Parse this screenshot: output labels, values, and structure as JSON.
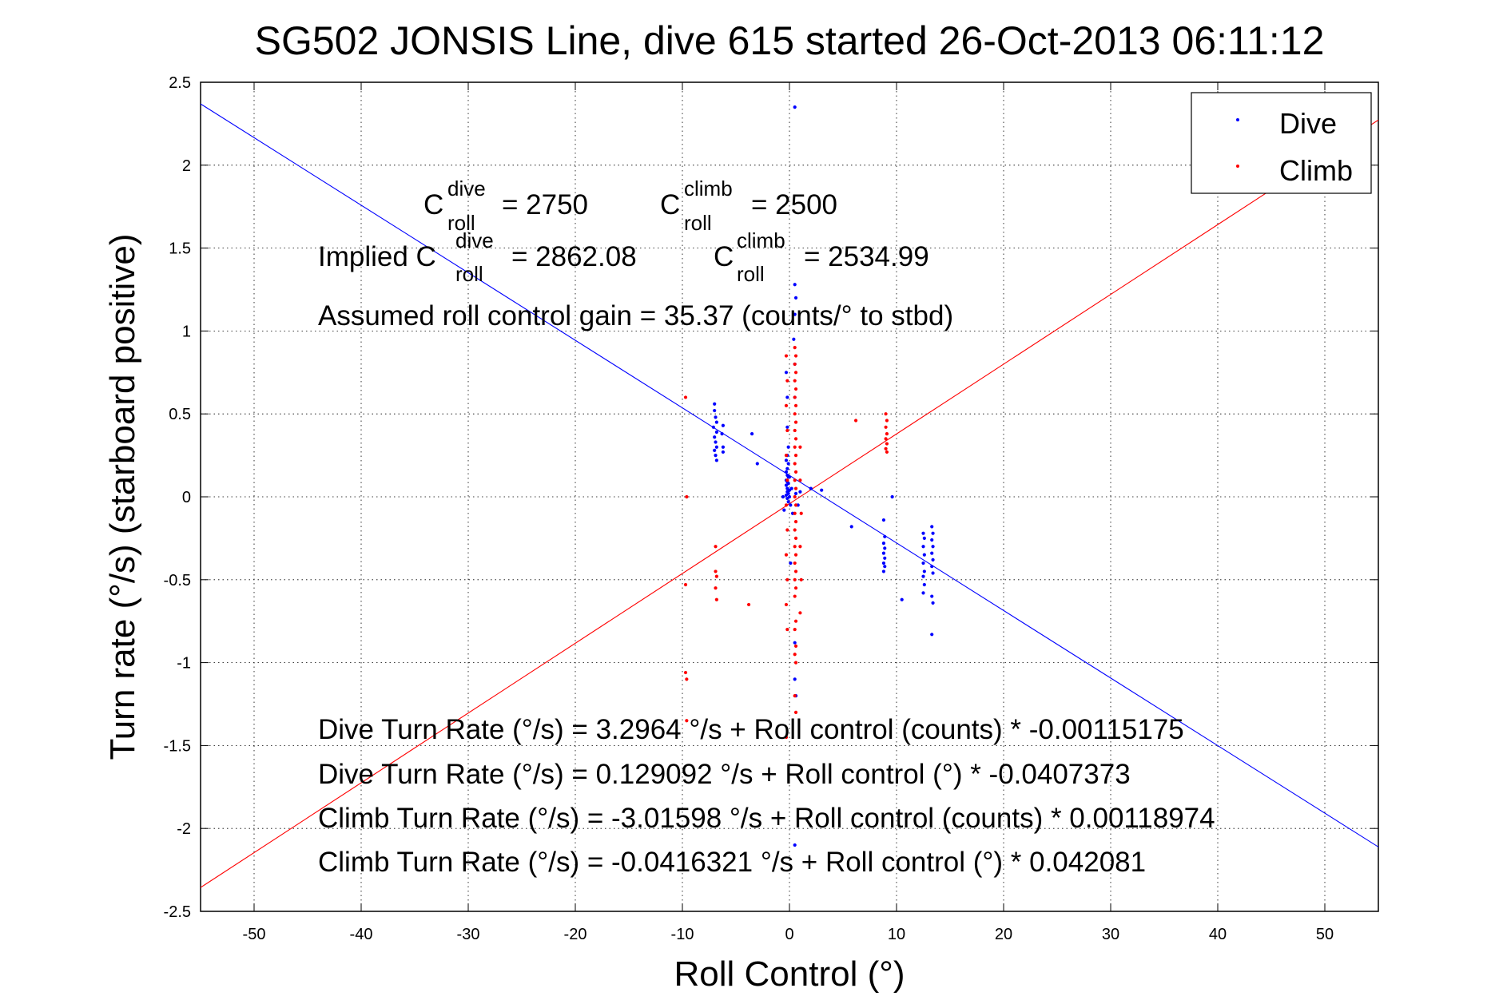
{
  "chart_data": {
    "type": "scatter",
    "title": "SG502 JONSIS Line, dive 615 started 26-Oct-2013 06:11:12",
    "xlabel": "Roll Control (°)",
    "ylabel": "Turn rate (°/s)  (starboard positive)",
    "xlim": [
      -55,
      55
    ],
    "ylim": [
      -2.5,
      2.5
    ],
    "xticks": [
      -50,
      -40,
      -30,
      -20,
      -10,
      0,
      10,
      20,
      30,
      40,
      50
    ],
    "yticks": [
      -2.5,
      -2,
      -1.5,
      -1,
      -0.5,
      0,
      0.5,
      1,
      1.5,
      2,
      2.5
    ],
    "grid": true,
    "legend_position": "top-right",
    "legend": [
      {
        "label": "Dive",
        "color": "#0000ff"
      },
      {
        "label": "Climb",
        "color": "#ff0000"
      }
    ],
    "series": [
      {
        "name": "Dive",
        "color": "#0000ff",
        "points": [
          [
            0.5,
            2.35
          ],
          [
            0.5,
            1.28
          ],
          [
            0.6,
            1.2
          ],
          [
            0.5,
            1.1
          ],
          [
            0.4,
            0.95
          ],
          [
            0.5,
            0.8
          ],
          [
            0.5,
            0.6
          ],
          [
            -0.3,
            0.75
          ],
          [
            -0.2,
            0.6
          ],
          [
            -0.2,
            0.42
          ],
          [
            -0.1,
            0.3
          ],
          [
            -0.2,
            0.25
          ],
          [
            -0.3,
            0.22
          ],
          [
            -0.1,
            0.2
          ],
          [
            -0.2,
            0.17
          ],
          [
            -0.3,
            0.15
          ],
          [
            -0.2,
            0.13
          ],
          [
            -0.1,
            0.12
          ],
          [
            -0.3,
            0.1
          ],
          [
            -0.2,
            0.09
          ],
          [
            -0.1,
            0.08
          ],
          [
            -0.3,
            0.07
          ],
          [
            -0.2,
            0.05
          ],
          [
            0.0,
            0.04
          ],
          [
            -0.2,
            0.03
          ],
          [
            -0.1,
            0.02
          ],
          [
            -0.3,
            0.01
          ],
          [
            0.0,
            0.0
          ],
          [
            -0.2,
            -0.01
          ],
          [
            -0.1,
            -0.03
          ],
          [
            0.1,
            -0.05
          ],
          [
            -0.5,
            -0.08
          ],
          [
            0.3,
            -0.1
          ],
          [
            0.0,
            0.12
          ],
          [
            0.2,
            0.05
          ],
          [
            0.6,
            0.02
          ],
          [
            0.8,
            -0.05
          ],
          [
            1.0,
            0.03
          ],
          [
            -0.6,
            0.0
          ],
          [
            0.1,
            -0.4
          ],
          [
            0.5,
            -0.88
          ],
          [
            0.5,
            -1.1
          ],
          [
            0.6,
            -1.2
          ],
          [
            0.5,
            -2.1
          ],
          [
            -7.0,
            0.56
          ],
          [
            -7.0,
            0.52
          ],
          [
            -6.9,
            0.48
          ],
          [
            -6.8,
            0.45
          ],
          [
            -7.1,
            0.42
          ],
          [
            -6.8,
            0.39
          ],
          [
            -7.0,
            0.36
          ],
          [
            -6.9,
            0.33
          ],
          [
            -6.8,
            0.3
          ],
          [
            -7.0,
            0.28
          ],
          [
            -6.9,
            0.25
          ],
          [
            -6.8,
            0.22
          ],
          [
            -6.2,
            0.43
          ],
          [
            -6.3,
            0.38
          ],
          [
            -6.2,
            0.3
          ],
          [
            -6.2,
            0.27
          ],
          [
            -3.5,
            0.38
          ],
          [
            -3.0,
            0.2
          ],
          [
            2.0,
            0.05
          ],
          [
            3.0,
            0.04
          ],
          [
            5.8,
            -0.18
          ],
          [
            8.8,
            -0.14
          ],
          [
            8.9,
            -0.24
          ],
          [
            8.8,
            -0.28
          ],
          [
            8.9,
            -0.31
          ],
          [
            8.8,
            -0.34
          ],
          [
            8.9,
            -0.37
          ],
          [
            8.8,
            -0.4
          ],
          [
            8.9,
            -0.42
          ],
          [
            8.8,
            -0.45
          ],
          [
            9.6,
            0.0
          ],
          [
            10.5,
            -0.62
          ],
          [
            12.5,
            -0.22
          ],
          [
            12.6,
            -0.25
          ],
          [
            12.5,
            -0.3
          ],
          [
            12.6,
            -0.35
          ],
          [
            12.5,
            -0.4
          ],
          [
            12.6,
            -0.45
          ],
          [
            12.5,
            -0.48
          ],
          [
            12.6,
            -0.53
          ],
          [
            12.5,
            -0.58
          ],
          [
            13.3,
            -0.18
          ],
          [
            13.4,
            -0.22
          ],
          [
            13.3,
            -0.26
          ],
          [
            13.4,
            -0.3
          ],
          [
            13.3,
            -0.34
          ],
          [
            13.4,
            -0.38
          ],
          [
            13.3,
            -0.42
          ],
          [
            13.4,
            -0.46
          ],
          [
            13.3,
            -0.6
          ],
          [
            13.4,
            -0.64
          ],
          [
            13.3,
            -0.83
          ]
        ]
      },
      {
        "name": "Climb",
        "color": "#ff0000",
        "points": [
          [
            0.5,
            0.9
          ],
          [
            0.6,
            0.85
          ],
          [
            0.5,
            0.8
          ],
          [
            0.6,
            0.75
          ],
          [
            0.5,
            0.7
          ],
          [
            0.6,
            0.65
          ],
          [
            0.5,
            0.6
          ],
          [
            0.6,
            0.55
          ],
          [
            0.5,
            0.5
          ],
          [
            0.6,
            0.45
          ],
          [
            0.5,
            0.4
          ],
          [
            0.6,
            0.35
          ],
          [
            0.5,
            0.3
          ],
          [
            0.6,
            0.25
          ],
          [
            0.5,
            0.2
          ],
          [
            0.6,
            0.15
          ],
          [
            0.5,
            0.1
          ],
          [
            0.6,
            0.05
          ],
          [
            0.5,
            0.0
          ],
          [
            0.6,
            -0.05
          ],
          [
            0.5,
            -0.1
          ],
          [
            0.6,
            -0.15
          ],
          [
            0.5,
            -0.2
          ],
          [
            0.6,
            -0.25
          ],
          [
            0.5,
            -0.3
          ],
          [
            0.6,
            -0.35
          ],
          [
            0.5,
            -0.4
          ],
          [
            0.6,
            -0.45
          ],
          [
            0.5,
            -0.5
          ],
          [
            0.6,
            -0.55
          ],
          [
            0.5,
            -0.6
          ],
          [
            0.6,
            -0.75
          ],
          [
            0.5,
            -0.8
          ],
          [
            0.6,
            -0.9
          ],
          [
            0.5,
            -0.95
          ],
          [
            0.6,
            -1.0
          ],
          [
            0.5,
            -1.2
          ],
          [
            0.6,
            -1.3
          ],
          [
            1.0,
            0.3
          ],
          [
            1.0,
            0.1
          ],
          [
            1.1,
            -0.1
          ],
          [
            1.0,
            -0.3
          ],
          [
            1.1,
            -0.5
          ],
          [
            1.0,
            -0.7
          ],
          [
            -0.3,
            0.85
          ],
          [
            -0.2,
            0.7
          ],
          [
            -0.3,
            0.55
          ],
          [
            -0.2,
            0.4
          ],
          [
            -0.3,
            0.25
          ],
          [
            -0.2,
            0.1
          ],
          [
            -0.3,
            -0.05
          ],
          [
            -0.2,
            -0.2
          ],
          [
            -0.3,
            -0.35
          ],
          [
            -0.2,
            -0.5
          ],
          [
            -0.3,
            -0.65
          ],
          [
            -0.2,
            -0.8
          ],
          [
            -0.3,
            -1.45
          ],
          [
            -9.7,
            0.6
          ],
          [
            -9.6,
            0.0
          ],
          [
            -9.7,
            -0.53
          ],
          [
            -9.7,
            -1.06
          ],
          [
            -9.6,
            -1.1
          ],
          [
            -9.6,
            -1.35
          ],
          [
            -6.9,
            -0.45
          ],
          [
            -6.8,
            -0.48
          ],
          [
            -6.9,
            -0.55
          ],
          [
            -6.8,
            -0.62
          ],
          [
            -6.9,
            -0.3
          ],
          [
            -3.8,
            -0.65
          ],
          [
            6.2,
            0.46
          ],
          [
            9.0,
            0.5
          ],
          [
            9.1,
            0.46
          ],
          [
            9.0,
            0.42
          ],
          [
            9.1,
            0.38
          ],
          [
            9.0,
            0.35
          ],
          [
            9.1,
            0.32
          ],
          [
            9.0,
            0.29
          ],
          [
            9.1,
            0.27
          ]
        ]
      }
    ],
    "fit_lines": [
      {
        "name": "Dive fit",
        "color": "#0000ff",
        "intercept": 0.129092,
        "slope": -0.0407373
      },
      {
        "name": "Climb fit",
        "color": "#ff0000",
        "intercept": -0.0416321,
        "slope": 0.042081
      }
    ],
    "annotations": {
      "c_dive_prefix": "C",
      "c_dive_sup": "dive",
      "c_dive_sub": "roll",
      "c_dive_value": "= 2750",
      "c_climb_prefix": "C",
      "c_climb_sup": "climb",
      "c_climb_sub": "roll",
      "c_climb_value": "= 2500",
      "implied_prefix": "Implied C",
      "implied_dive_sup": "dive",
      "implied_dive_sub": "roll",
      "implied_dive_value": "= 2862.08",
      "implied_climb_prefix": "C",
      "implied_climb_sup": "climb",
      "implied_climb_sub": "roll",
      "implied_climb_value": "= 2534.99",
      "gain": "Assumed roll control gain = 35.37 (counts/° to stbd)",
      "eq1": "Dive Turn Rate (°/s) = 3.2964 °/s + Roll control (counts) * -0.00115175",
      "eq2": "Dive Turn Rate (°/s) = 0.129092 °/s + Roll control (°) * -0.0407373",
      "eq3": "Climb Turn Rate (°/s) = -3.01598 °/s + Roll control (counts) * 0.00118974",
      "eq4": "Climb Turn Rate (°/s) = -0.0416321 °/s + Roll control (°) * 0.042081"
    }
  }
}
